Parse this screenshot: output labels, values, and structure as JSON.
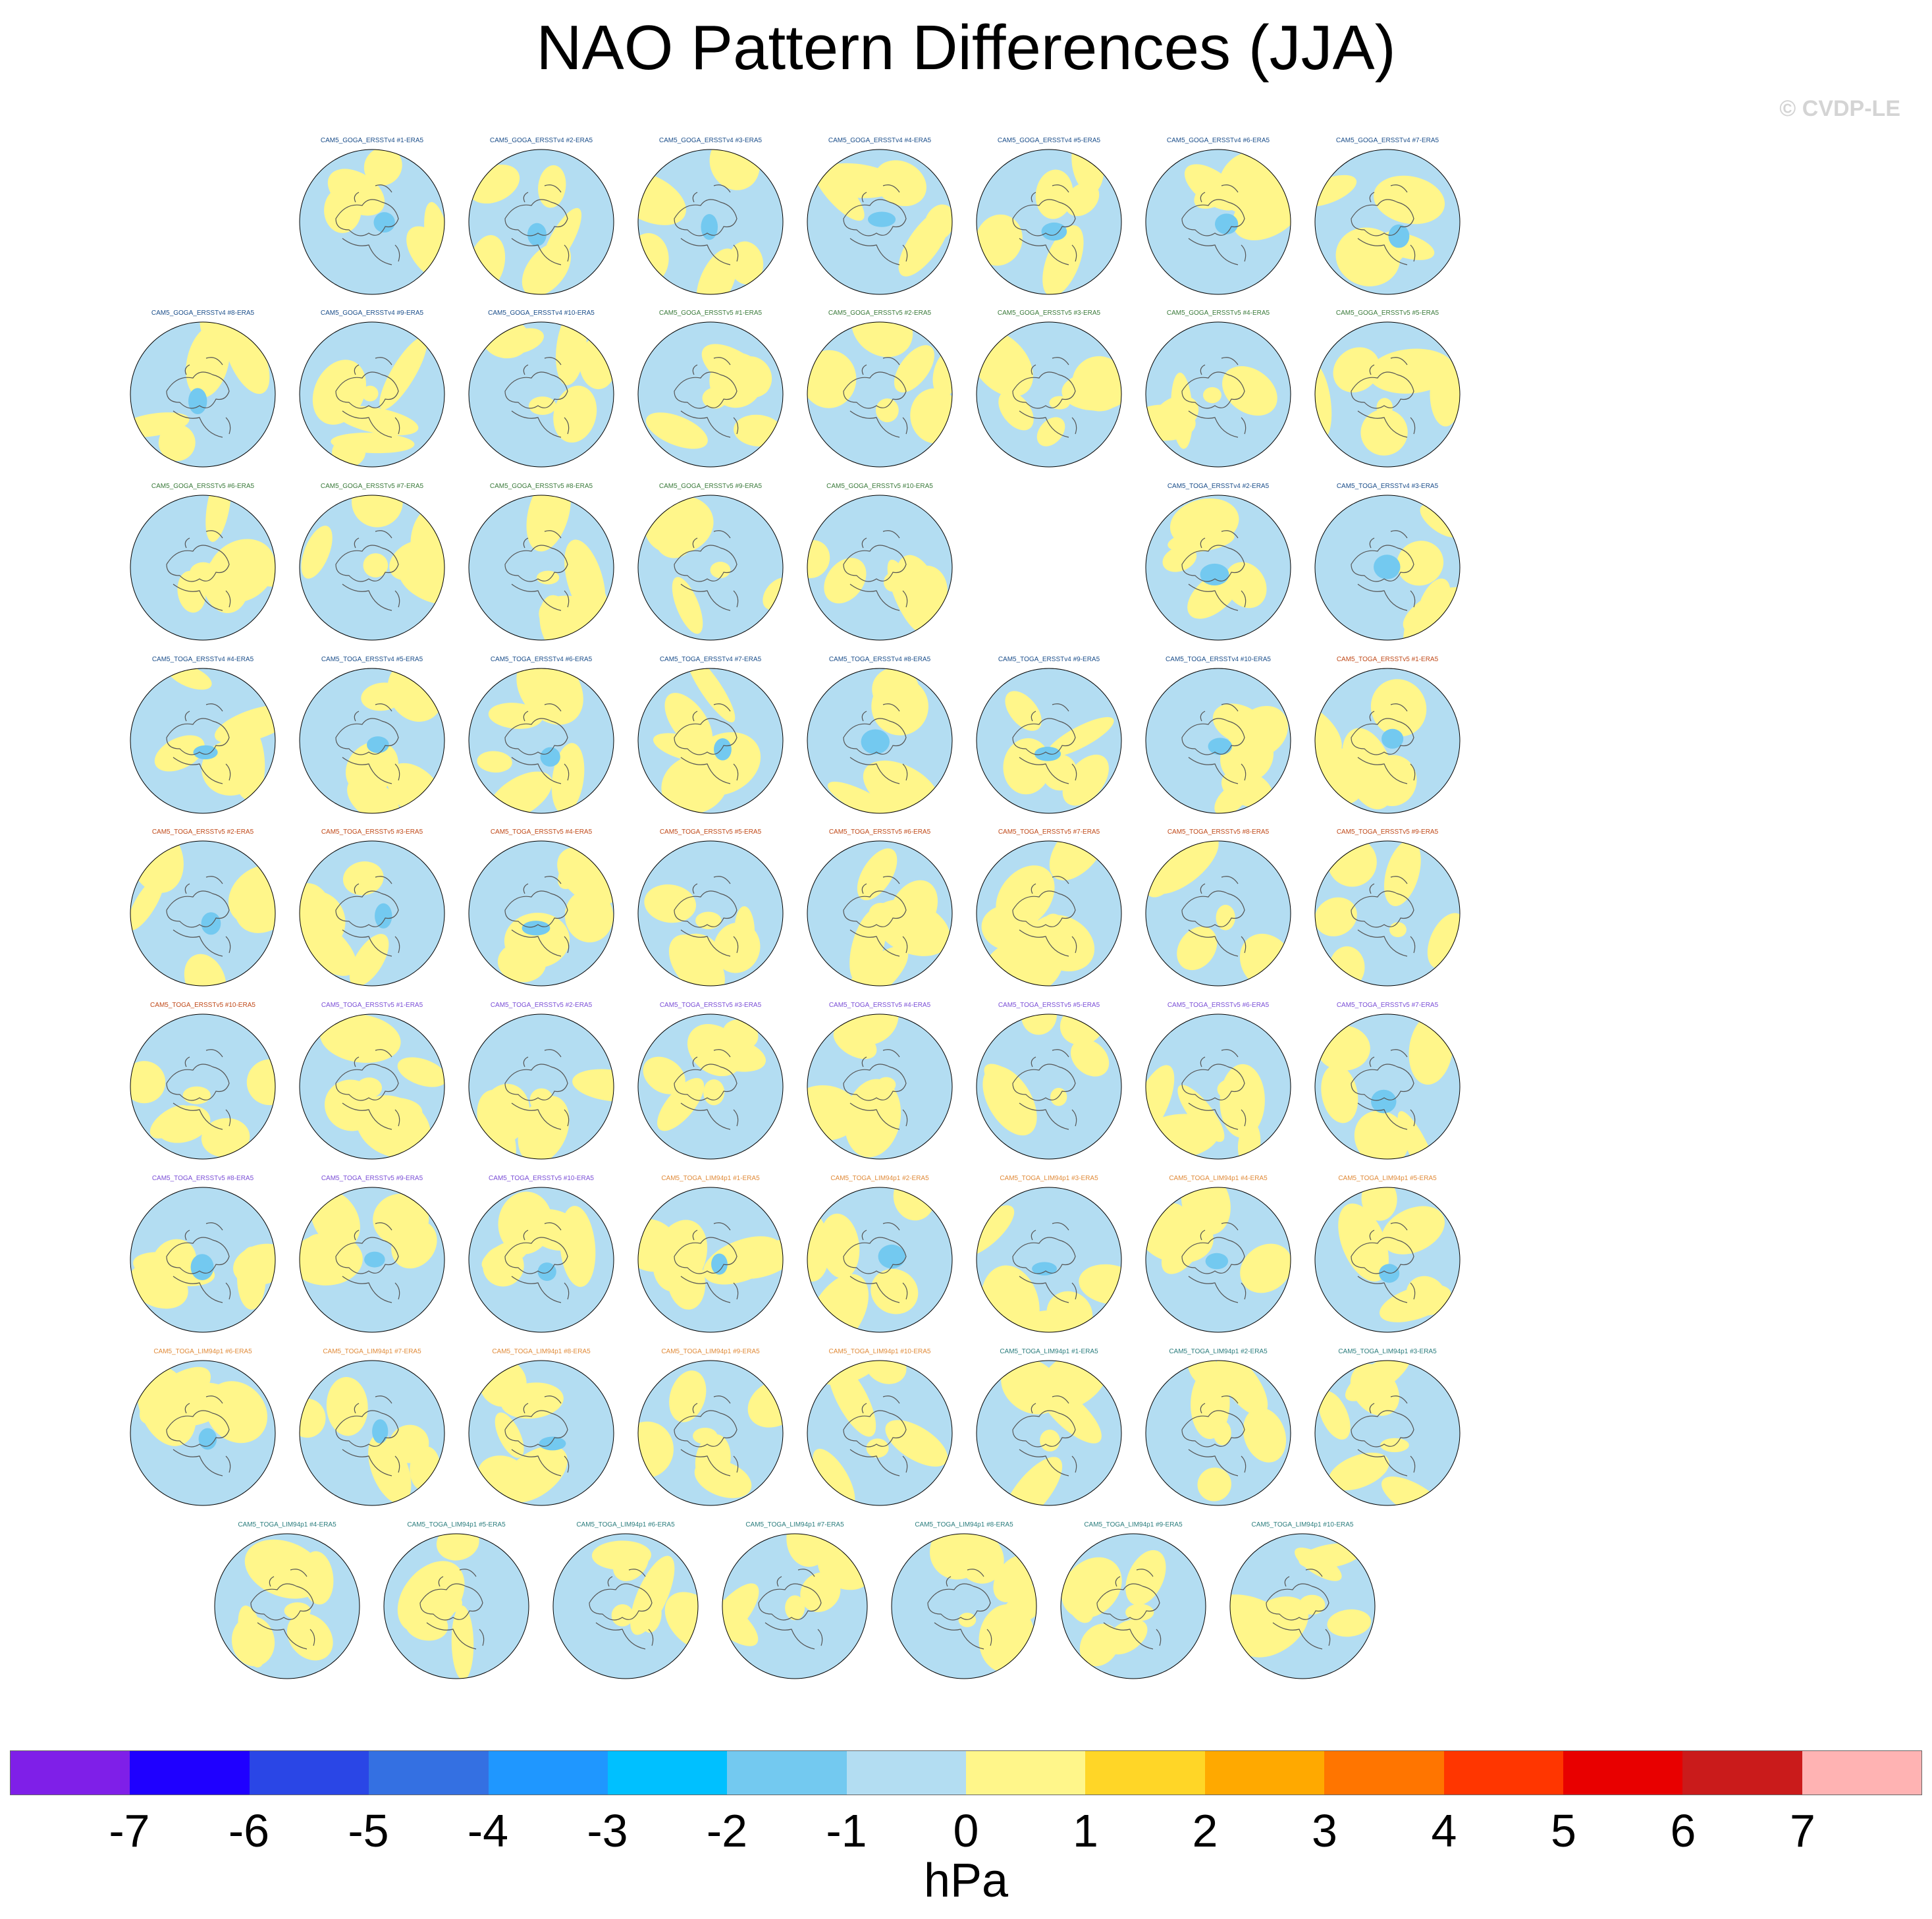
{
  "title": "NAO Pattern Differences (JJA)",
  "credit": "© CVDP-LE",
  "units": "hPa",
  "colors": {
    "land_outline": "#555555",
    "panel_ocean_negative": "#b3ddf2",
    "panel_positive": "#fff68a",
    "group_ERSSTv4": "#1b4e8a",
    "group_ERSSTv5_GOGA": "#3a7a3a",
    "group_ERSSTv5_TOGA": "#c04a1a",
    "group_ERSSTv5_TOGA2": "#7b4fd6",
    "group_LIM_orange": "#e08b3a",
    "group_LIM_teal": "#2b7d7d"
  },
  "colorbar": {
    "colors": [
      "#7f1fe8",
      "#1f00ff",
      "#2a46e6",
      "#3470e2",
      "#1f97ff",
      "#00c0ff",
      "#73c9f0",
      "#b3ddf2",
      "#fff68a",
      "#ffd627",
      "#ffa900",
      "#ff7500",
      "#ff3600",
      "#e80000",
      "#ca1b1b",
      "#ffb3b3"
    ],
    "labels": [
      "-7",
      "-6",
      "-5",
      "-4",
      "-3",
      "-2",
      "-1",
      "0",
      "1",
      "2",
      "3",
      "4",
      "5",
      "6",
      "7"
    ]
  },
  "panels": [
    {
      "title": "CAM5_GOGA_ERSSTv4 #1-ERA5",
      "group": "group_ERSSTv4"
    },
    {
      "title": "CAM5_GOGA_ERSSTv4 #2-ERA5",
      "group": "group_ERSSTv4"
    },
    {
      "title": "CAM5_GOGA_ERSSTv4 #3-ERA5",
      "group": "group_ERSSTv4"
    },
    {
      "title": "CAM5_GOGA_ERSSTv4 #4-ERA5",
      "group": "group_ERSSTv4"
    },
    {
      "title": "CAM5_GOGA_ERSSTv4 #5-ERA5",
      "group": "group_ERSSTv4"
    },
    {
      "title": "CAM5_GOGA_ERSSTv4 #6-ERA5",
      "group": "group_ERSSTv4"
    },
    {
      "title": "CAM5_GOGA_ERSSTv4 #7-ERA5",
      "group": "group_ERSSTv4"
    },
    {
      "title": "CAM5_GOGA_ERSSTv4 #8-ERA5",
      "group": "group_ERSSTv4"
    },
    {
      "title": "CAM5_GOGA_ERSSTv4 #9-ERA5",
      "group": "group_ERSSTv4"
    },
    {
      "title": "CAM5_GOGA_ERSSTv4 #10-ERA5",
      "group": "group_ERSSTv4"
    },
    {
      "title": "CAM5_GOGA_ERSSTv5 #1-ERA5",
      "group": "group_ERSSTv5_GOGA"
    },
    {
      "title": "CAM5_GOGA_ERSSTv5 #2-ERA5",
      "group": "group_ERSSTv5_GOGA"
    },
    {
      "title": "CAM5_GOGA_ERSSTv5 #3-ERA5",
      "group": "group_ERSSTv5_GOGA"
    },
    {
      "title": "CAM5_GOGA_ERSSTv5 #4-ERA5",
      "group": "group_ERSSTv5_GOGA"
    },
    {
      "title": "CAM5_GOGA_ERSSTv5 #5-ERA5",
      "group": "group_ERSSTv5_GOGA"
    },
    {
      "title": "CAM5_GOGA_ERSSTv5 #6-ERA5",
      "group": "group_ERSSTv5_GOGA"
    },
    {
      "title": "CAM5_GOGA_ERSSTv5 #7-ERA5",
      "group": "group_ERSSTv5_GOGA"
    },
    {
      "title": "CAM5_GOGA_ERSSTv5 #8-ERA5",
      "group": "group_ERSSTv5_GOGA"
    },
    {
      "title": "CAM5_GOGA_ERSSTv5 #9-ERA5",
      "group": "group_ERSSTv5_GOGA"
    },
    {
      "title": "CAM5_GOGA_ERSSTv5 #10-ERA5",
      "group": "group_ERSSTv5_GOGA"
    },
    {
      "title": "CAM5_TOGA_ERSSTv4 #2-ERA5",
      "group": "group_ERSSTv4"
    },
    {
      "title": "CAM5_TOGA_ERSSTv4 #3-ERA5",
      "group": "group_ERSSTv4"
    },
    {
      "title": "CAM5_TOGA_ERSSTv4 #4-ERA5",
      "group": "group_ERSSTv4"
    },
    {
      "title": "CAM5_TOGA_ERSSTv4 #5-ERA5",
      "group": "group_ERSSTv4"
    },
    {
      "title": "CAM5_TOGA_ERSSTv4 #6-ERA5",
      "group": "group_ERSSTv4"
    },
    {
      "title": "CAM5_TOGA_ERSSTv4 #7-ERA5",
      "group": "group_ERSSTv4"
    },
    {
      "title": "CAM5_TOGA_ERSSTv4 #8-ERA5",
      "group": "group_ERSSTv4"
    },
    {
      "title": "CAM5_TOGA_ERSSTv4 #9-ERA5",
      "group": "group_ERSSTv4"
    },
    {
      "title": "CAM5_TOGA_ERSSTv4 #10-ERA5",
      "group": "group_ERSSTv4"
    },
    {
      "title": "CAM5_TOGA_ERSSTv5 #1-ERA5",
      "group": "group_ERSSTv5_TOGA"
    },
    {
      "title": "CAM5_TOGA_ERSSTv5 #2-ERA5",
      "group": "group_ERSSTv5_TOGA"
    },
    {
      "title": "CAM5_TOGA_ERSSTv5 #3-ERA5",
      "group": "group_ERSSTv5_TOGA"
    },
    {
      "title": "CAM5_TOGA_ERSSTv5 #4-ERA5",
      "group": "group_ERSSTv5_TOGA"
    },
    {
      "title": "CAM5_TOGA_ERSSTv5 #5-ERA5",
      "group": "group_ERSSTv5_TOGA"
    },
    {
      "title": "CAM5_TOGA_ERSSTv5 #6-ERA5",
      "group": "group_ERSSTv5_TOGA"
    },
    {
      "title": "CAM5_TOGA_ERSSTv5 #7-ERA5",
      "group": "group_ERSSTv5_TOGA"
    },
    {
      "title": "CAM5_TOGA_ERSSTv5 #8-ERA5",
      "group": "group_ERSSTv5_TOGA"
    },
    {
      "title": "CAM5_TOGA_ERSSTv5 #9-ERA5",
      "group": "group_ERSSTv5_TOGA"
    },
    {
      "title": "CAM5_TOGA_ERSSTv5 #10-ERA5",
      "group": "group_ERSSTv5_TOGA"
    },
    {
      "title": "CAM5_TOGA_ERSSTv5 #1-ERA5",
      "group": "group_ERSSTv5_TOGA2"
    },
    {
      "title": "CAM5_TOGA_ERSSTv5 #2-ERA5",
      "group": "group_ERSSTv5_TOGA2"
    },
    {
      "title": "CAM5_TOGA_ERSSTv5 #3-ERA5",
      "group": "group_ERSSTv5_TOGA2"
    },
    {
      "title": "CAM5_TOGA_ERSSTv5 #4-ERA5",
      "group": "group_ERSSTv5_TOGA2"
    },
    {
      "title": "CAM5_TOGA_ERSSTv5 #5-ERA5",
      "group": "group_ERSSTv5_TOGA2"
    },
    {
      "title": "CAM5_TOGA_ERSSTv5 #6-ERA5",
      "group": "group_ERSSTv5_TOGA2"
    },
    {
      "title": "CAM5_TOGA_ERSSTv5 #7-ERA5",
      "group": "group_ERSSTv5_TOGA2"
    },
    {
      "title": "CAM5_TOGA_ERSSTv5 #8-ERA5",
      "group": "group_ERSSTv5_TOGA2"
    },
    {
      "title": "CAM5_TOGA_ERSSTv5 #9-ERA5",
      "group": "group_ERSSTv5_TOGA2"
    },
    {
      "title": "CAM5_TOGA_ERSSTv5 #10-ERA5",
      "group": "group_ERSSTv5_TOGA2"
    },
    {
      "title": "CAM5_TOGA_LIM94p1 #1-ERA5",
      "group": "group_LIM_orange"
    },
    {
      "title": "CAM5_TOGA_LIM94p1 #2-ERA5",
      "group": "group_LIM_orange"
    },
    {
      "title": "CAM5_TOGA_LIM94p1 #3-ERA5",
      "group": "group_LIM_orange"
    },
    {
      "title": "CAM5_TOGA_LIM94p1 #4-ERA5",
      "group": "group_LIM_orange"
    },
    {
      "title": "CAM5_TOGA_LIM94p1 #5-ERA5",
      "group": "group_LIM_orange"
    },
    {
      "title": "CAM5_TOGA_LIM94p1 #6-ERA5",
      "group": "group_LIM_orange"
    },
    {
      "title": "CAM5_TOGA_LIM94p1 #7-ERA5",
      "group": "group_LIM_orange"
    },
    {
      "title": "CAM5_TOGA_LIM94p1 #8-ERA5",
      "group": "group_LIM_orange"
    },
    {
      "title": "CAM5_TOGA_LIM94p1 #9-ERA5",
      "group": "group_LIM_orange"
    },
    {
      "title": "CAM5_TOGA_LIM94p1 #10-ERA5",
      "group": "group_LIM_orange"
    },
    {
      "title": "CAM5_TOGA_LIM94p1 #1-ERA5",
      "group": "group_LIM_teal"
    },
    {
      "title": "CAM5_TOGA_LIM94p1 #2-ERA5",
      "group": "group_LIM_teal"
    },
    {
      "title": "CAM5_TOGA_LIM94p1 #3-ERA5",
      "group": "group_LIM_teal"
    },
    {
      "title": "CAM5_TOGA_LIM94p1 #4-ERA5",
      "group": "group_LIM_teal"
    },
    {
      "title": "CAM5_TOGA_LIM94p1 #5-ERA5",
      "group": "group_LIM_teal"
    },
    {
      "title": "CAM5_TOGA_LIM94p1 #6-ERA5",
      "group": "group_LIM_teal"
    },
    {
      "title": "CAM5_TOGA_LIM94p1 #7-ERA5",
      "group": "group_LIM_teal"
    },
    {
      "title": "CAM5_TOGA_LIM94p1 #8-ERA5",
      "group": "group_LIM_teal"
    },
    {
      "title": "CAM5_TOGA_LIM94p1 #9-ERA5",
      "group": "group_LIM_teal"
    },
    {
      "title": "CAM5_TOGA_LIM94p1 #10-ERA5",
      "group": "group_LIM_teal"
    }
  ]
}
